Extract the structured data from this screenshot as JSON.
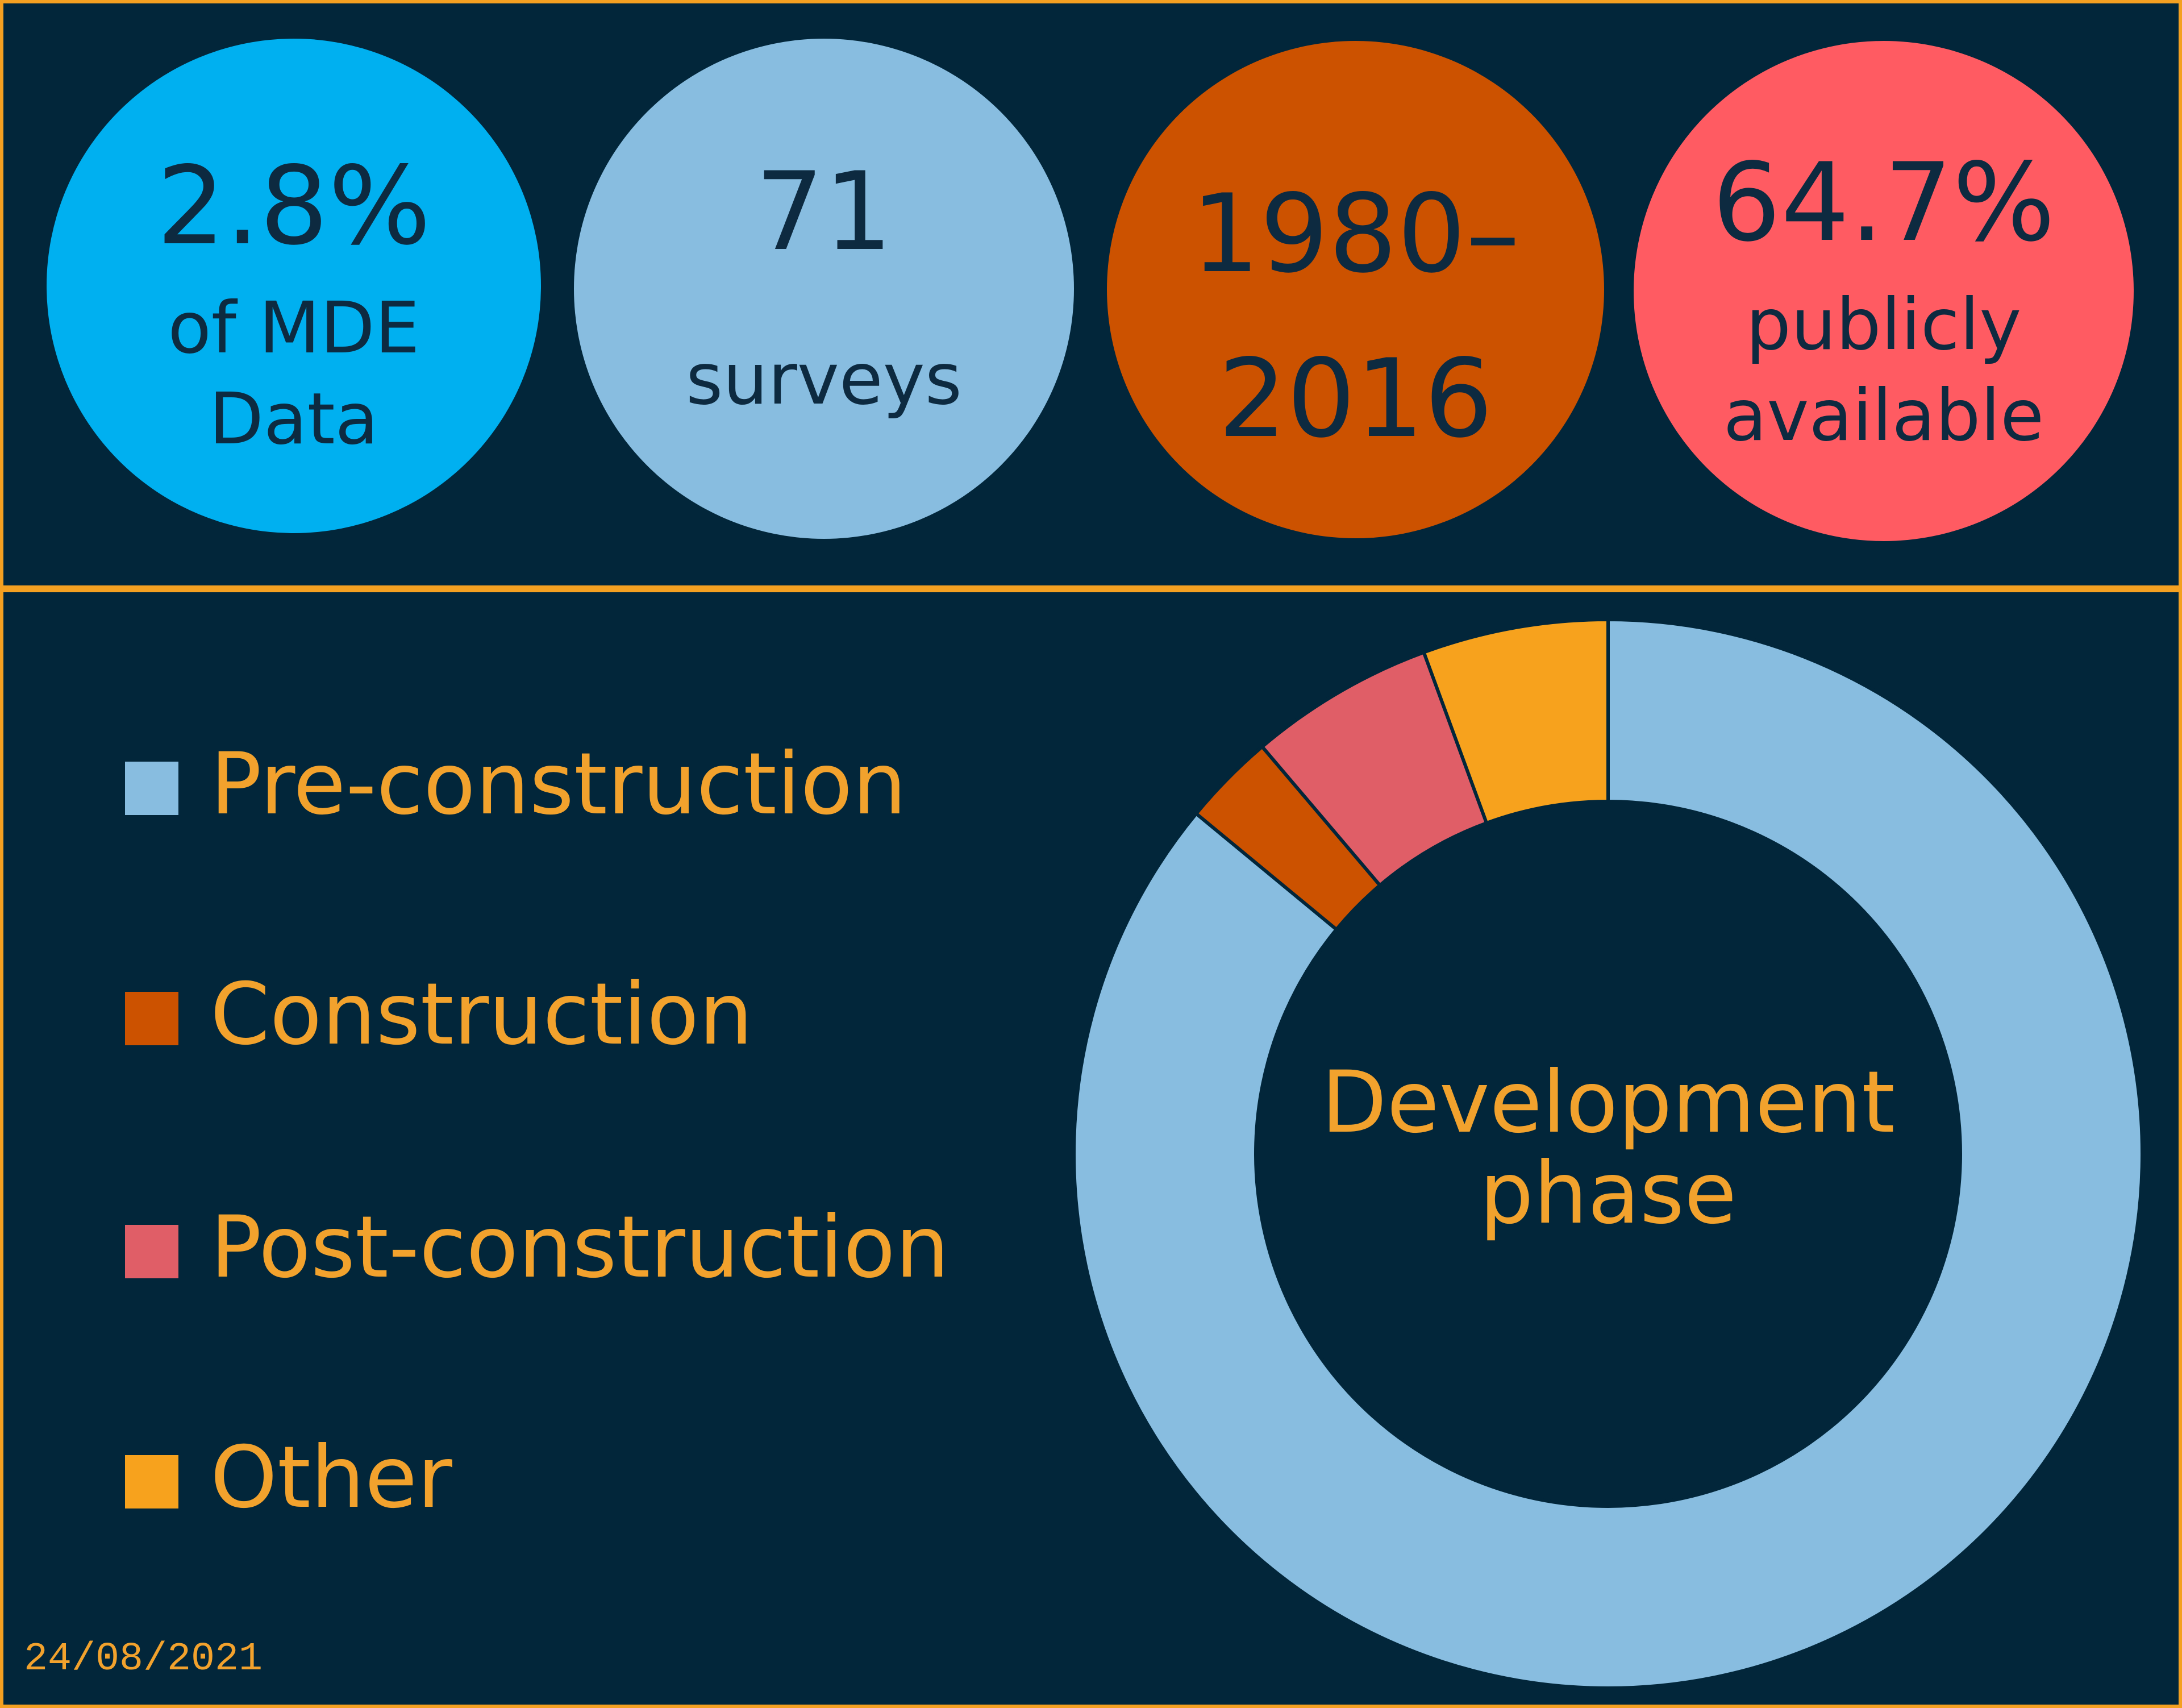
{
  "stats": [
    {
      "main": "2.8%",
      "sub": "of MDE\nData",
      "color": "#00b0f0"
    },
    {
      "main": "71",
      "sub": "surveys",
      "color": "#88bde0"
    },
    {
      "main": "1980–\n2016",
      "sub": "",
      "color": "#cc5200"
    },
    {
      "main": "64.7%",
      "sub": "publicly\navailable",
      "color": "#ff5b62"
    }
  ],
  "chart_data": {
    "type": "pie",
    "donut": true,
    "center_label": "Development\nphase",
    "categories": [
      "Pre-construction",
      "Construction",
      "Post-construction",
      "Other"
    ],
    "values": [
      85.9,
      2.8,
      5.6,
      5.6
    ],
    "colors": [
      "#88bde0",
      "#cc5200",
      "#e05e67",
      "#f7a21d"
    ],
    "legend_position": "left"
  },
  "footer": {
    "date": "24/08/2021"
  },
  "theme": {
    "background": "#02263a",
    "border": "#f4a021",
    "accent_text": "#f2a22d"
  }
}
